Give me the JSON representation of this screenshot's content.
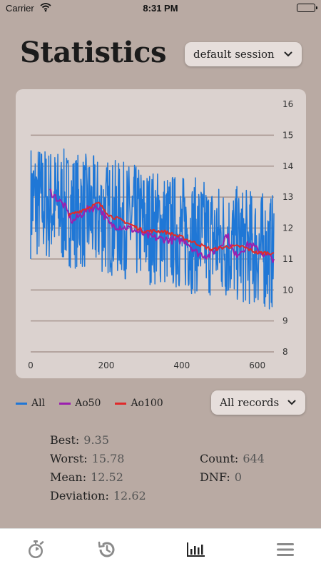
{
  "status_bar": {
    "carrier": "Carrier",
    "time": "8:31 PM",
    "battery_level": 1.0
  },
  "header": {
    "title": "Statistics",
    "session_dropdown": {
      "selected": "default session",
      "icon": "chevron-down-icon"
    }
  },
  "chart_data": {
    "type": "line",
    "x_range": [
      0,
      644
    ],
    "x_ticks": [
      "0",
      "200",
      "400",
      "600"
    ],
    "y_ticks": [
      "16",
      "15",
      "14",
      "13",
      "12",
      "11",
      "10",
      "9",
      "8"
    ],
    "ylim": [
      8,
      16
    ],
    "grid": true,
    "series": [
      {
        "name": "All",
        "color": "#1f77d6",
        "count": 644,
        "trend_start": 12.9,
        "trend_end": 11.2,
        "spread": 1.9
      },
      {
        "name": "Ao50",
        "color": "#9b1faf",
        "start_x": 50,
        "values_hint": [
          13.1,
          12.2,
          12.7,
          12.2,
          12.0,
          11.6,
          11.3,
          11.7,
          11.2
        ],
        "keypoints": [
          [
            50,
            13.2
          ],
          [
            90,
            12.7
          ],
          [
            110,
            12.2
          ],
          [
            150,
            12.6
          ],
          [
            180,
            12.7
          ],
          [
            210,
            12.1
          ],
          [
            260,
            12.0
          ],
          [
            320,
            11.7
          ],
          [
            380,
            11.6
          ],
          [
            410,
            11.6
          ],
          [
            440,
            11.2
          ],
          [
            470,
            11.1
          ],
          [
            500,
            11.4
          ],
          [
            520,
            11.8
          ],
          [
            540,
            11.1
          ],
          [
            580,
            11.5
          ],
          [
            610,
            11.2
          ],
          [
            644,
            11.0
          ]
        ]
      },
      {
        "name": "Ao100",
        "color": "#e0292a",
        "start_x": 100,
        "keypoints": [
          [
            100,
            12.4
          ],
          [
            140,
            12.6
          ],
          [
            180,
            12.8
          ],
          [
            210,
            12.4
          ],
          [
            250,
            12.2
          ],
          [
            300,
            11.9
          ],
          [
            350,
            11.9
          ],
          [
            400,
            11.7
          ],
          [
            440,
            11.5
          ],
          [
            480,
            11.3
          ],
          [
            520,
            11.4
          ],
          [
            560,
            11.4
          ],
          [
            600,
            11.2
          ],
          [
            644,
            11.2
          ]
        ]
      }
    ]
  },
  "legend": {
    "items": [
      {
        "label": "All",
        "color": "#1f77d6"
      },
      {
        "label": "Ao50",
        "color": "#9b1faf"
      },
      {
        "label": "Ao100",
        "color": "#e0292a"
      }
    ]
  },
  "records_dropdown": {
    "selected": "All records",
    "icon": "chevron-down-icon"
  },
  "stats": {
    "best_label": "Best:",
    "best_value": "9.35",
    "worst_label": "Worst:",
    "worst_value": "15.78",
    "mean_label": "Mean:",
    "mean_value": "12.52",
    "deviation_label": "Deviation:",
    "deviation_value": "12.62",
    "count_label": "Count:",
    "count_value": "644",
    "dnf_label": "DNF:",
    "dnf_value": "0"
  },
  "tab_bar": {
    "tabs": [
      {
        "name": "timer",
        "icon": "stopwatch-icon"
      },
      {
        "name": "history",
        "icon": "history-icon"
      },
      {
        "name": "statistics",
        "icon": "bar-chart-icon",
        "active": true
      },
      {
        "name": "menu",
        "icon": "menu-icon"
      }
    ]
  }
}
